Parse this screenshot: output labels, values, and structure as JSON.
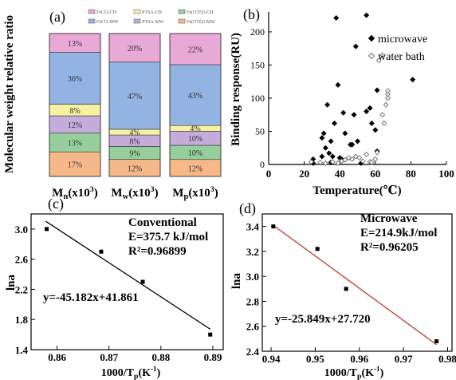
{
  "chart_data": [
    {
      "panel": "(a)",
      "type": "bar",
      "stacked": true,
      "ylabel": "Molecular weight relative ratio",
      "categories": [
        "Mn(x10³)",
        "Mw(x10³)",
        "Mp(x10³)"
      ],
      "category_parts": [
        {
          "main": "M",
          "sub": "n",
          "rest": "(x10",
          "sup": "3",
          "close": ")"
        },
        {
          "main": "M",
          "sub": "w",
          "rest": "(x10",
          "sup": "3",
          "close": ")"
        },
        {
          "main": "M",
          "sub": "p",
          "rest": "(x10",
          "sup": "3",
          "close": ")"
        }
      ],
      "legend": [
        {
          "label": "FeCl3-CH",
          "color": "#e8a9d4"
        },
        {
          "label": "PTSA-CH",
          "color": "#f6f2a2"
        },
        {
          "label": "Fe(OTf)3-CH",
          "color": "#96cf9c"
        },
        {
          "label": "FeCl3-MW",
          "color": "#93b4e3"
        },
        {
          "label": "PTSA-MW",
          "color": "#c5addb"
        },
        {
          "label": "Fe(OTf)3-MW",
          "color": "#f7b889"
        }
      ],
      "segment_order_bottom_to_top": [
        "Fe(OTf)3-MW",
        "Fe(OTf)3-CH",
        "PTSA-MW",
        "PTSA-CH",
        "FeCl3-MW",
        "FeCl3-CH"
      ],
      "series": [
        {
          "name": "Fe(OTf)3-MW",
          "values": [
            17,
            12,
            12
          ],
          "labels": [
            "17%",
            "12%",
            "12%"
          ]
        },
        {
          "name": "Fe(OTf)3-CH",
          "values": [
            13,
            9,
            10
          ],
          "labels": [
            "13%",
            "9%",
            "10%"
          ]
        },
        {
          "name": "PTSA-MW",
          "values": [
            12,
            8,
            10
          ],
          "labels": [
            "12%",
            "8%",
            "10%"
          ]
        },
        {
          "name": "PTSA-CH",
          "values": [
            8,
            4,
            4
          ],
          "labels": [
            "8%",
            "4%",
            "4%"
          ]
        },
        {
          "name": "FeCl3-MW",
          "values": [
            36,
            47,
            43
          ],
          "labels": [
            "36%",
            "47%",
            "43%"
          ]
        },
        {
          "name": "FeCl3-CH",
          "values": [
            13,
            20,
            22
          ],
          "labels": [
            "13%",
            "20%",
            "22%"
          ]
        }
      ],
      "ylim": [
        0,
        100
      ]
    },
    {
      "panel": "(b)",
      "type": "scatter",
      "xlabel": "Temperature(℃)",
      "ylabel": "Binding response(RU)",
      "xlim": [
        0,
        100
      ],
      "ylim": [
        0,
        230
      ],
      "xticks": [
        0,
        20,
        40,
        60,
        80,
        100
      ],
      "yticks": [
        0,
        50,
        100,
        150,
        200
      ],
      "legend_position": "top-right",
      "series": [
        {
          "name": "microwave",
          "marker": "filled-diamond",
          "points": [
            [
              25,
              2
            ],
            [
              25,
              8
            ],
            [
              30,
              12
            ],
            [
              30,
              40
            ],
            [
              31,
              47
            ],
            [
              32,
              25
            ],
            [
              33,
              90
            ],
            [
              34,
              17
            ],
            [
              35,
              3
            ],
            [
              35,
              35
            ],
            [
              36,
              12
            ],
            [
              37,
              62
            ],
            [
              38,
              221
            ],
            [
              39,
              120
            ],
            [
              40,
              10
            ],
            [
              41,
              8
            ],
            [
              42,
              78
            ],
            [
              43,
              47
            ],
            [
              46,
              30
            ],
            [
              47,
              30
            ],
            [
              48,
              75
            ],
            [
              49,
              178
            ],
            [
              50,
              35
            ],
            [
              52,
              2
            ],
            [
              55,
              225
            ],
            [
              55,
              80
            ],
            [
              57,
              85
            ],
            [
              58,
              62
            ],
            [
              60,
              52
            ],
            [
              61,
              20
            ],
            [
              61,
              112
            ],
            [
              81,
              128
            ]
          ]
        },
        {
          "name": "water bath",
          "marker": "open-diamond",
          "points": [
            [
              24,
              4
            ],
            [
              29,
              3
            ],
            [
              32,
              2
            ],
            [
              36,
              4
            ],
            [
              39,
              2
            ],
            [
              41,
              5
            ],
            [
              43,
              7
            ],
            [
              45,
              10
            ],
            [
              47,
              8
            ],
            [
              49,
              12
            ],
            [
              51,
              10
            ],
            [
              53,
              5
            ],
            [
              55,
              15
            ],
            [
              57,
              4
            ],
            [
              58,
              3
            ],
            [
              60,
              8
            ],
            [
              61,
              18
            ],
            [
              62,
              157
            ],
            [
              64,
              165
            ],
            [
              64,
              75
            ],
            [
              65,
              62
            ],
            [
              66,
              90
            ],
            [
              67,
              100
            ],
            [
              67,
              106
            ],
            [
              67,
              111
            ]
          ]
        }
      ]
    },
    {
      "panel": "(c)",
      "type": "scatter",
      "xlabel": "1000/Tp(K⁻¹)",
      "xlabel_parts": {
        "main": "1000/T",
        "sub": "p",
        "rest": "(K",
        "sup": "-1",
        "close": ")"
      },
      "ylabel": "lna",
      "xlim": [
        0.855,
        0.892
      ],
      "ylim": [
        1.4,
        3.2
      ],
      "xticks": [
        0.86,
        0.87,
        0.88,
        0.89
      ],
      "yticks": [
        1.4,
        1.8,
        2.2,
        2.6,
        3.0
      ],
      "points": [
        [
          0.858,
          3.0
        ],
        [
          0.8685,
          2.7
        ],
        [
          0.8765,
          2.3
        ],
        [
          0.8895,
          1.6
        ]
      ],
      "fit": {
        "slope": -45.182,
        "intercept": 41.861,
        "x_range": [
          0.8578,
          0.8895
        ],
        "color": "#000000"
      },
      "annotation_title": "Conventional",
      "annotation_e": "E=375.7 kJ/mol",
      "annotation_r2": "R²=0.96899",
      "equation": "y=-45.182x+41.861"
    },
    {
      "panel": "(d)",
      "type": "scatter",
      "xlabel": "1000/Tp(K⁻¹)",
      "xlabel_parts": {
        "main": "1000/T",
        "sub": "p",
        "rest": "(K",
        "sup": "-1",
        "close": ")"
      },
      "ylabel": "lna",
      "xlim": [
        0.938,
        0.981
      ],
      "ylim": [
        2.4,
        3.5
      ],
      "xticks": [
        0.94,
        0.95,
        0.96,
        0.97,
        0.98
      ],
      "yticks": [
        2.4,
        2.6,
        2.8,
        3.0,
        3.2,
        3.4
      ],
      "points": [
        [
          0.9405,
          3.4
        ],
        [
          0.9505,
          3.22
        ],
        [
          0.957,
          2.9
        ],
        [
          0.9775,
          2.48
        ]
      ],
      "fit": {
        "slope": -25.849,
        "intercept": 27.72,
        "x_range": [
          0.9405,
          0.9775
        ],
        "color": "#c0392b"
      },
      "annotation_title": "Microwave",
      "annotation_e": "E=214.9kJ/mol",
      "annotation_r2": "R²=0.96205",
      "equation": "y=-25.849x+27.720"
    }
  ]
}
